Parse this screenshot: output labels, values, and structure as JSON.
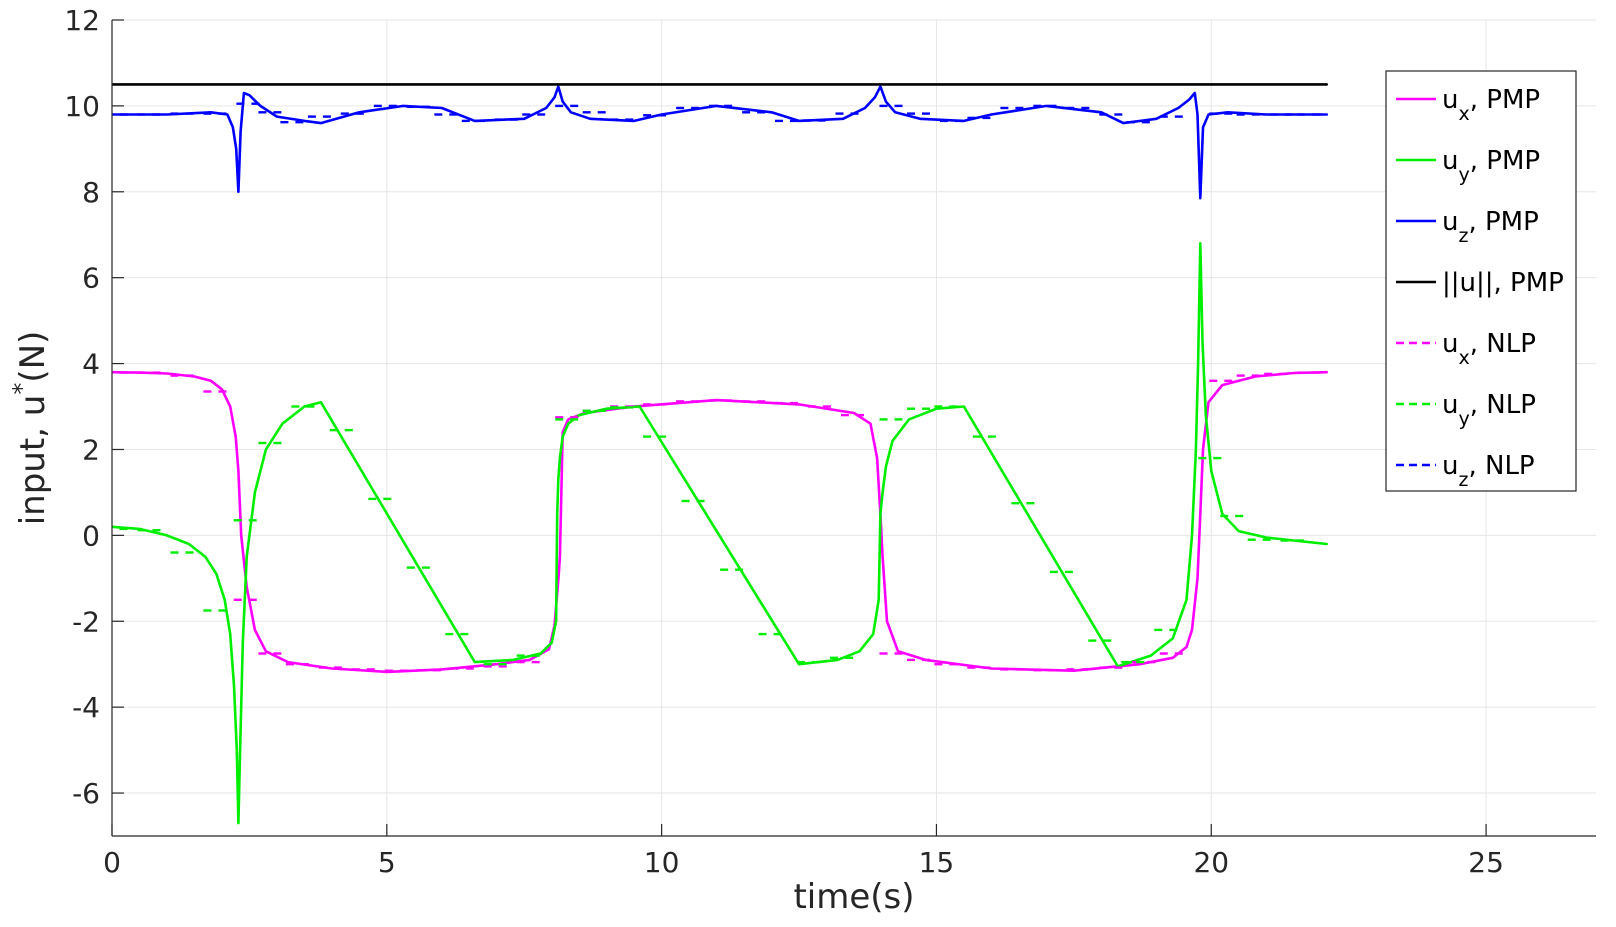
{
  "chart_data": {
    "type": "line",
    "xlabel": "time(s)",
    "ylabel": {
      "main": "input, u",
      "sup": "*",
      "tail": "(N)"
    },
    "xlim": [
      0,
      27
    ],
    "ylim": [
      -7,
      12
    ],
    "xticks": [
      0,
      5,
      10,
      15,
      20,
      25
    ],
    "yticks": [
      -6,
      -4,
      -2,
      0,
      2,
      4,
      6,
      8,
      10,
      12
    ],
    "grid": true,
    "legend_position": "top-right",
    "series": [
      {
        "name": "PMP",
        "label_base": "u",
        "label_sub": "x",
        "label_tail": ", PMP",
        "color": "#ff00ff",
        "style": "solid",
        "x": [
          0,
          0.5,
          1.0,
          1.5,
          1.8,
          2.0,
          2.15,
          2.25,
          2.3,
          2.35,
          2.45,
          2.6,
          2.8,
          3.2,
          4.0,
          5.0,
          6.0,
          7.0,
          7.6,
          7.95,
          8.05,
          8.13,
          8.15,
          8.2,
          8.3,
          8.6,
          9.5,
          11.0,
          12.5,
          13.5,
          13.8,
          13.92,
          13.98,
          14.02,
          14.1,
          14.3,
          14.8,
          16.0,
          17.5,
          18.7,
          19.3,
          19.55,
          19.65,
          19.75,
          19.8,
          19.85,
          19.95,
          20.2,
          20.8,
          21.5,
          22.1
        ],
        "y": [
          3.8,
          3.79,
          3.77,
          3.7,
          3.6,
          3.4,
          3.0,
          2.3,
          1.5,
          0.0,
          -1.2,
          -2.2,
          -2.7,
          -2.95,
          -3.1,
          -3.18,
          -3.12,
          -3.0,
          -2.9,
          -2.65,
          -2.1,
          -0.9,
          -0.5,
          2.4,
          2.7,
          2.85,
          3.0,
          3.15,
          3.05,
          2.85,
          2.6,
          1.8,
          0.5,
          -0.5,
          -2.0,
          -2.7,
          -2.9,
          -3.1,
          -3.15,
          -3.0,
          -2.85,
          -2.6,
          -2.2,
          -1.0,
          0.5,
          2.0,
          3.1,
          3.5,
          3.7,
          3.78,
          3.8
        ]
      },
      {
        "name": "PMP",
        "label_base": "u",
        "label_sub": "y",
        "label_tail": ", PMP",
        "color": "#00ee00",
        "style": "solid",
        "x": [
          0,
          0.5,
          1.0,
          1.4,
          1.7,
          1.9,
          2.05,
          2.15,
          2.22,
          2.27,
          2.3,
          2.33,
          2.38,
          2.45,
          2.6,
          2.8,
          3.1,
          3.5,
          3.8,
          6.6,
          7.3,
          7.8,
          8.0,
          8.08,
          8.1,
          8.12,
          8.15,
          8.2,
          8.3,
          8.5,
          9.0,
          9.6,
          12.5,
          13.2,
          13.6,
          13.85,
          13.95,
          13.98,
          14.02,
          14.08,
          14.2,
          14.5,
          15.0,
          15.5,
          18.3,
          18.9,
          19.3,
          19.55,
          19.65,
          19.72,
          19.76,
          19.8,
          19.84,
          19.9,
          20.0,
          20.2,
          20.5,
          21.0,
          21.5,
          22.1
        ],
        "y": [
          0.2,
          0.15,
          0.0,
          -0.2,
          -0.5,
          -0.9,
          -1.5,
          -2.3,
          -3.5,
          -5.0,
          -6.7,
          -5.0,
          -2.5,
          -0.5,
          1.0,
          2.0,
          2.6,
          3.0,
          3.1,
          -2.95,
          -2.9,
          -2.75,
          -2.5,
          -2.0,
          0.5,
          1.3,
          1.8,
          2.3,
          2.6,
          2.8,
          2.95,
          3.0,
          -3.0,
          -2.9,
          -2.7,
          -2.3,
          -1.5,
          0.5,
          1.0,
          1.6,
          2.2,
          2.7,
          2.95,
          3.0,
          -3.05,
          -2.8,
          -2.4,
          -1.5,
          0.0,
          2.0,
          4.0,
          6.8,
          4.5,
          2.8,
          1.5,
          0.5,
          0.1,
          -0.05,
          -0.12,
          -0.2
        ]
      },
      {
        "name": "PMP",
        "label_base": "u",
        "label_sub": "z",
        "label_tail": ", PMP",
        "color": "#0000ff",
        "style": "solid",
        "x": [
          0,
          1.0,
          1.8,
          2.1,
          2.2,
          2.26,
          2.3,
          2.34,
          2.4,
          2.5,
          2.7,
          3.0,
          3.5,
          3.8,
          4.5,
          5.3,
          6.0,
          6.6,
          7.5,
          7.9,
          8.05,
          8.12,
          8.2,
          8.35,
          8.7,
          9.5,
          10.0,
          11.0,
          12.0,
          12.5,
          13.3,
          13.7,
          13.88,
          13.98,
          14.08,
          14.25,
          14.7,
          15.5,
          16.0,
          17.0,
          18.0,
          18.4,
          19.0,
          19.4,
          19.6,
          19.7,
          19.75,
          19.8,
          19.85,
          19.95,
          20.3,
          21.0,
          22.1
        ],
        "y": [
          9.8,
          9.8,
          9.85,
          9.8,
          9.5,
          9.0,
          8.0,
          9.4,
          10.3,
          10.25,
          10.0,
          9.75,
          9.65,
          9.6,
          9.85,
          10.0,
          9.95,
          9.65,
          9.7,
          9.95,
          10.2,
          10.45,
          10.1,
          9.85,
          9.7,
          9.65,
          9.8,
          10.0,
          9.85,
          9.65,
          9.7,
          9.95,
          10.2,
          10.45,
          10.1,
          9.85,
          9.7,
          9.65,
          9.8,
          10.0,
          9.85,
          9.6,
          9.7,
          9.95,
          10.15,
          10.3,
          9.8,
          7.85,
          9.5,
          9.8,
          9.85,
          9.8,
          9.8
        ]
      },
      {
        "name": "PMP",
        "label_base": "||u||",
        "label_sub": "",
        "label_tail": ", PMP",
        "color": "#000000",
        "style": "solid",
        "x": [
          0,
          22.1
        ],
        "y": [
          10.5,
          10.5
        ]
      },
      {
        "name": "NLP",
        "label_base": "u",
        "label_sub": "x",
        "label_tail": ", NLP",
        "color": "#ff00ff",
        "style": "dashed",
        "x": [
          0.1,
          0.7,
          1.3,
          1.9,
          2.45,
          2.9,
          3.4,
          4.0,
          4.6,
          5.2,
          5.8,
          6.4,
          7.0,
          7.6,
          8.3,
          8.8,
          9.3,
          9.9,
          10.5,
          11.1,
          11.7,
          12.3,
          12.9,
          13.5,
          14.2,
          14.7,
          15.2,
          15.8,
          16.4,
          17.0,
          17.6,
          18.2,
          18.8,
          19.3,
          20.2,
          20.7,
          21.2,
          21.8
        ],
        "y": [
          3.79,
          3.79,
          3.72,
          3.35,
          -1.5,
          -2.75,
          -3.0,
          -3.08,
          -3.12,
          -3.15,
          -3.14,
          -3.1,
          -3.05,
          -2.95,
          2.75,
          2.9,
          3.0,
          3.05,
          3.12,
          3.14,
          3.12,
          3.08,
          3.0,
          2.8,
          -2.75,
          -2.9,
          -3.0,
          -3.08,
          -3.12,
          -3.14,
          -3.12,
          -3.08,
          -2.95,
          -2.75,
          3.6,
          3.72,
          3.76,
          3.79
        ]
      },
      {
        "name": "NLP",
        "label_base": "u",
        "label_sub": "y",
        "label_tail": ", NLP",
        "color": "#00ee00",
        "style": "dashed",
        "x": [
          0.1,
          0.7,
          1.3,
          1.9,
          2.45,
          2.9,
          3.5,
          4.2,
          4.9,
          5.6,
          6.3,
          7.0,
          7.6,
          8.3,
          8.8,
          9.3,
          9.9,
          10.6,
          11.3,
          12.0,
          12.7,
          13.3,
          14.2,
          14.7,
          15.2,
          15.9,
          16.6,
          17.3,
          18.0,
          18.6,
          19.2,
          20.0,
          20.4,
          20.9,
          21.5
        ],
        "y": [
          0.15,
          0.12,
          -0.4,
          -1.75,
          0.35,
          2.15,
          3.0,
          2.45,
          0.85,
          -0.75,
          -2.3,
          -3.0,
          -2.8,
          2.7,
          2.9,
          2.98,
          2.3,
          0.8,
          -0.8,
          -2.3,
          -2.95,
          -2.85,
          2.7,
          2.95,
          3.0,
          2.3,
          0.75,
          -0.85,
          -2.45,
          -2.95,
          -2.2,
          1.8,
          0.45,
          -0.1,
          -0.12
        ]
      },
      {
        "name": "NLP",
        "label_base": "u",
        "label_sub": "z",
        "label_tail": ", NLP",
        "color": "#0000ff",
        "style": "dashed",
        "x": [
          0.1,
          0.7,
          1.3,
          1.9,
          2.5,
          2.9,
          3.3,
          3.8,
          4.4,
          5.0,
          5.6,
          6.1,
          6.6,
          7.2,
          7.7,
          8.3,
          8.8,
          9.3,
          9.9,
          10.5,
          11.1,
          11.7,
          12.3,
          12.8,
          13.4,
          14.2,
          14.7,
          15.3,
          15.8,
          16.4,
          17.0,
          17.6,
          18.2,
          18.7,
          19.3,
          20.2,
          20.7,
          21.3,
          21.8
        ],
        "y": [
          9.8,
          9.8,
          9.82,
          9.82,
          10.05,
          9.85,
          9.62,
          9.75,
          9.82,
          10.0,
          9.98,
          9.8,
          9.65,
          9.68,
          9.8,
          10.0,
          9.85,
          9.68,
          9.78,
          9.95,
          10.0,
          9.85,
          9.65,
          9.66,
          9.82,
          10.0,
          9.82,
          9.65,
          9.72,
          9.95,
          10.0,
          9.95,
          9.8,
          9.62,
          9.75,
          9.82,
          9.8,
          9.8,
          9.8
        ]
      }
    ]
  }
}
